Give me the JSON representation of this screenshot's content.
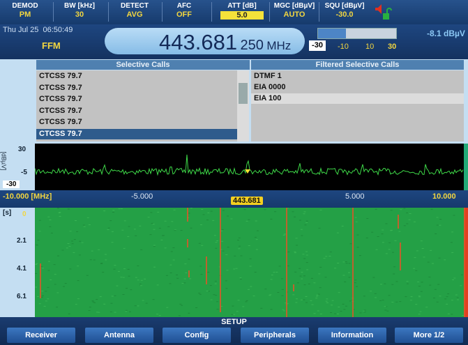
{
  "status_bar": {
    "items": [
      {
        "label": "DEMOD",
        "value": "PM"
      },
      {
        "label": "BW [kHz]",
        "value": "30"
      },
      {
        "label": "DETECT",
        "value": "AVG"
      },
      {
        "label": "AFC",
        "value": "OFF"
      },
      {
        "label": "ATT [dB]",
        "value": "5.0"
      },
      {
        "label": "MGC [dBµV]",
        "value": "AUTO"
      },
      {
        "label": "SQU [dBµV]",
        "value": "-30.0"
      }
    ]
  },
  "receiver": {
    "date": "Thu Jul 25",
    "time": "06:50:49",
    "mode": "FFM",
    "frequency": "443.681",
    "frequency_fine": "250",
    "frequency_unit": "MHz",
    "level": {
      "range_min": "-30",
      "scale": [
        "-10",
        "10",
        "30"
      ],
      "value": "-8.1 dBµV"
    }
  },
  "selective_calls": {
    "title": "Selective Calls",
    "items": [
      "CTCSS 79.7",
      "CTCSS 79.7",
      "CTCSS 79.7",
      "CTCSS 79.7",
      "CTCSS 79.7",
      "CTCSS 79.7"
    ]
  },
  "filtered_calls": {
    "title": "Filtered Selective Calls",
    "items": [
      "DTMF 1",
      "EIA 0000",
      "EIA 100"
    ]
  },
  "spectrum": {
    "unit": "[dBµV]",
    "y_labels": [
      "30",
      "-5",
      "-30"
    ],
    "x_labels": [
      "-10.000 [MHz]",
      "-5.000",
      "443.681",
      "5.000",
      "10.000"
    ]
  },
  "waterfall": {
    "unit": "[s]",
    "y_labels": [
      "0",
      "2.1",
      "4.1",
      "6.1"
    ]
  },
  "menu": {
    "title": "SETUP",
    "buttons": [
      "Receiver",
      "Antenna",
      "Config",
      "Peripherals",
      "Information",
      "More 1/2"
    ]
  }
}
